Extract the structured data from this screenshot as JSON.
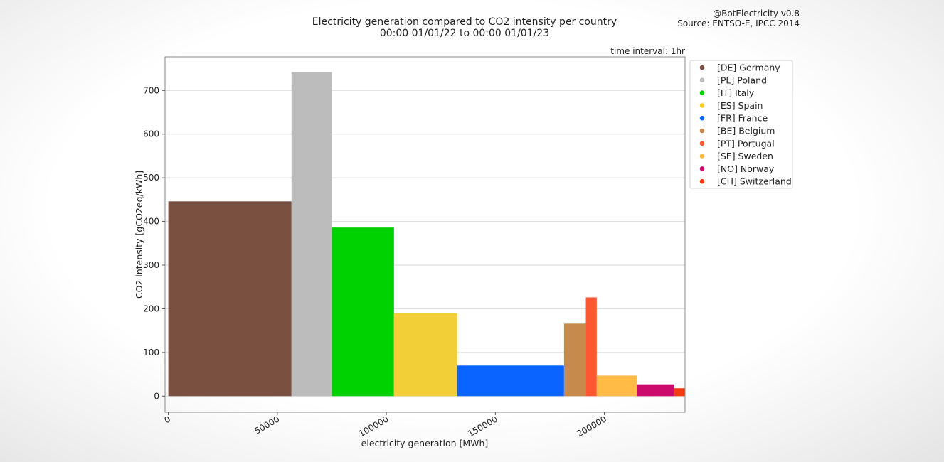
{
  "header": {
    "title_line1": "Electricity generation compared to CO2 intensity per country",
    "title_line2": "00:00 01/01/22 to 00:00 01/01/23",
    "credit_line1": "@BotElectricity v0.8",
    "credit_line2": "Source: ENTSO-E, IPCC 2014",
    "interval": "time interval: 1hr"
  },
  "chart_data": {
    "type": "bar",
    "subtype": "variable-width",
    "xlabel": "electricity generation [MWh]",
    "ylabel": "CO2 intensity [gCO2eq/kWh]",
    "xlim": [
      -1500,
      237000
    ],
    "ylim": [
      -37,
      777
    ],
    "xticks": [
      0,
      50000,
      100000,
      150000,
      200000
    ],
    "xtick_labels": [
      "0",
      "50000",
      "100000",
      "150000",
      "200000"
    ],
    "yticks": [
      0,
      100,
      200,
      300,
      400,
      500,
      600,
      700
    ],
    "ytick_labels": [
      "0",
      "100",
      "200",
      "300",
      "400",
      "500",
      "600",
      "700"
    ],
    "grid": "horizontal",
    "legend_position": "right",
    "series": [
      {
        "name": "[DE] Germany",
        "color": "#7a5140",
        "x_start": 0,
        "width": 56500,
        "value": 446
      },
      {
        "name": "[PL] Poland",
        "color": "#bcbcbc",
        "x_start": 56500,
        "width": 18500,
        "value": 742
      },
      {
        "name": "[IT] Italy",
        "color": "#00d100",
        "x_start": 75000,
        "width": 28500,
        "value": 386
      },
      {
        "name": "[ES] Spain",
        "color": "#f2cf36",
        "x_start": 103500,
        "width": 29000,
        "value": 190
      },
      {
        "name": "[FR] France",
        "color": "#0a64ff",
        "x_start": 132500,
        "width": 49000,
        "value": 70
      },
      {
        "name": "[BE] Belgium",
        "color": "#c68a4c",
        "x_start": 181500,
        "width": 10000,
        "value": 166
      },
      {
        "name": "[PT] Portugal",
        "color": "#ff5733",
        "x_start": 191500,
        "width": 5000,
        "value": 226
      },
      {
        "name": "[SE] Sweden",
        "color": "#ffbb45",
        "x_start": 196500,
        "width": 18500,
        "value": 47
      },
      {
        "name": "[NO] Norway",
        "color": "#cc0a6e",
        "x_start": 215000,
        "width": 17000,
        "value": 27
      },
      {
        "name": "[CH] Switzerland",
        "color": "#f03c10",
        "x_start": 232000,
        "width": 4900,
        "value": 18
      }
    ]
  }
}
